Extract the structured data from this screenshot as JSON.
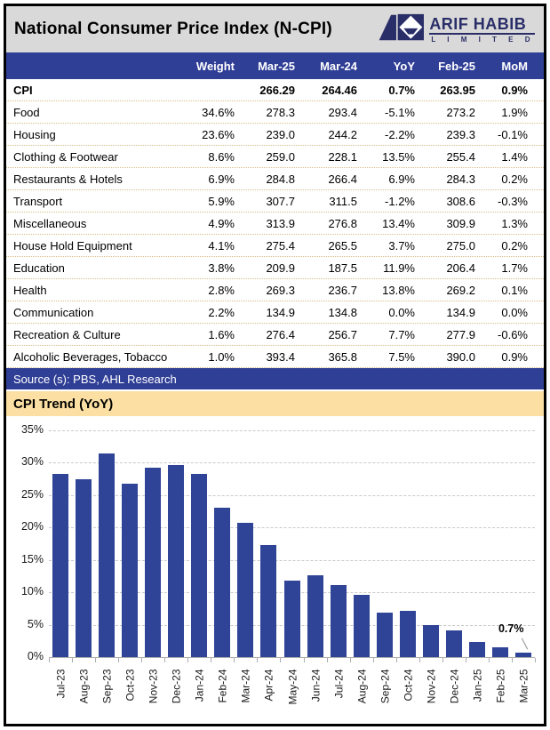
{
  "header": {
    "title": "National Consumer Price Index (N-CPI)",
    "logo_line1": "ARIF HABIB",
    "logo_line2": "L I M I T E D",
    "logo_color": "#2A2E68"
  },
  "table": {
    "columns": [
      "",
      "Weight",
      "Mar-25",
      "Mar-24",
      "YoY",
      "Feb-25",
      "MoM"
    ],
    "summary": {
      "label": "CPI",
      "weight": "",
      "mar25": "266.29",
      "mar24": "264.46",
      "yoy": "0.7%",
      "feb25": "263.95",
      "mom": "0.9%"
    },
    "rows": [
      [
        "Food",
        "34.6%",
        "278.3",
        "293.4",
        "-5.1%",
        "273.2",
        "1.9%"
      ],
      [
        "Housing",
        "23.6%",
        "239.0",
        "244.2",
        "-2.2%",
        "239.3",
        "-0.1%"
      ],
      [
        "Clothing & Footwear",
        "8.6%",
        "259.0",
        "228.1",
        "13.5%",
        "255.4",
        "1.4%"
      ],
      [
        "Restaurants & Hotels",
        "6.9%",
        "284.8",
        "266.4",
        "6.9%",
        "284.3",
        "0.2%"
      ],
      [
        "Transport",
        "5.9%",
        "307.7",
        "311.5",
        "-1.2%",
        "308.6",
        "-0.3%"
      ],
      [
        "Miscellaneous",
        "4.9%",
        "313.9",
        "276.8",
        "13.4%",
        "309.9",
        "1.3%"
      ],
      [
        "House Hold Equipment",
        "4.1%",
        "275.4",
        "265.5",
        "3.7%",
        "275.0",
        "0.2%"
      ],
      [
        "Education",
        "3.8%",
        "209.9",
        "187.5",
        "11.9%",
        "206.4",
        "1.7%"
      ],
      [
        "Health",
        "2.8%",
        "269.3",
        "236.7",
        "13.8%",
        "269.2",
        "0.1%"
      ],
      [
        "Communication",
        "2.2%",
        "134.9",
        "134.8",
        "0.0%",
        "134.9",
        "0.0%"
      ],
      [
        "Recreation & Culture",
        "1.6%",
        "276.4",
        "256.7",
        "7.7%",
        "277.9",
        "-0.6%"
      ],
      [
        "Alcoholic Beverages, Tobacco",
        "1.0%",
        "393.4",
        "365.8",
        "7.5%",
        "390.0",
        "0.9%"
      ]
    ],
    "source": "Source (s): PBS, AHL Research"
  },
  "section": {
    "title": "CPI Trend (YoY)"
  },
  "chart_data": {
    "type": "bar",
    "title": "CPI Trend (YoY)",
    "categories": [
      "Jul-23",
      "Aug-23",
      "Sep-23",
      "Oct-23",
      "Nov-23",
      "Dec-23",
      "Jan-24",
      "Feb-24",
      "Mar-24",
      "Apr-24",
      "May-24",
      "Jun-24",
      "Jul-24",
      "Aug-24",
      "Sep-24",
      "Oct-24",
      "Nov-24",
      "Dec-24",
      "Jan-25",
      "Feb-25",
      "Mar-25"
    ],
    "values": [
      28.3,
      27.4,
      31.4,
      26.8,
      29.2,
      29.7,
      28.3,
      23.1,
      20.7,
      17.3,
      11.8,
      12.6,
      11.1,
      9.6,
      6.9,
      7.2,
      4.9,
      4.1,
      2.4,
      1.5,
      0.7
    ],
    "xlabel": "",
    "ylabel": "",
    "ylim": [
      0,
      35
    ],
    "ytick_step": 5,
    "ytick_suffix": "%",
    "grid": true,
    "legend": false,
    "bar_color": "#2F4497",
    "annotation": {
      "text": "0.7%",
      "index": 20
    }
  },
  "colors": {
    "header_bg": "#D9D9D9",
    "navy_band": "#303F96",
    "bar_navy": "#2F4497",
    "tan_band": "#FBDFA3",
    "row_separator": "#D8BE8A"
  }
}
